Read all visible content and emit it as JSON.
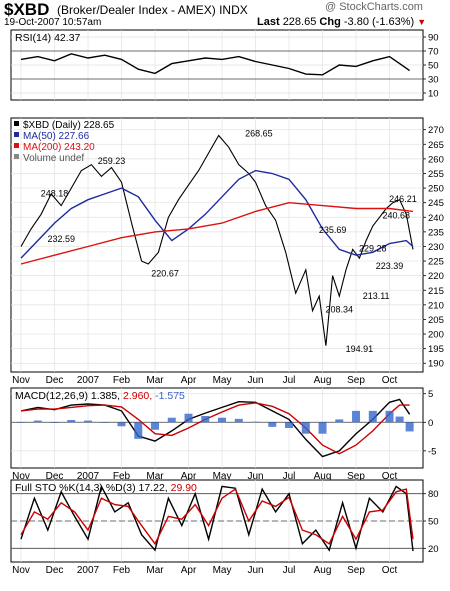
{
  "header": {
    "symbol": "$XBD",
    "name": "(Broker/Dealer Index - AMEX)",
    "exchange": "INDX",
    "watermark": "@ StockCharts.com",
    "date": "19-Oct-2007 10:57am",
    "last_label": "Last",
    "last_value": "228.65",
    "chg_label": "Chg",
    "chg_value": "-3.80 (-1.63%)",
    "chg_arrow": "▼"
  },
  "chart_data": [
    {
      "type": "line",
      "title": "RSI(14) 42.37",
      "indicator": "RSI",
      "yticks": [
        10,
        30,
        50,
        70,
        90
      ],
      "ylim": [
        0,
        100
      ],
      "reference_lines": [
        30,
        70
      ],
      "months": [
        "Nov",
        "Dec",
        "2007",
        "Feb",
        "Mar",
        "Apr",
        "May",
        "Jun",
        "Jul",
        "Aug",
        "Sep",
        "Oct"
      ],
      "series": [
        {
          "name": "RSI(14)",
          "color": "#000000",
          "x": [
            0,
            0.5,
            1,
            1.5,
            2,
            2.5,
            3,
            3.5,
            4,
            4.5,
            5,
            5.5,
            6,
            6.5,
            7,
            7.5,
            8,
            8.5,
            9,
            9.5,
            10,
            10.5,
            11,
            11.3,
            11.6
          ],
          "values": [
            58,
            62,
            56,
            66,
            60,
            64,
            58,
            44,
            38,
            52,
            56,
            60,
            58,
            62,
            55,
            50,
            45,
            37,
            36,
            50,
            48,
            56,
            62,
            52,
            42
          ]
        }
      ]
    },
    {
      "type": "line",
      "title": "$XBD (Daily) 228.65",
      "yticks": [
        190,
        195,
        200,
        205,
        210,
        215,
        220,
        225,
        230,
        235,
        240,
        245,
        250,
        255,
        260,
        265,
        270
      ],
      "ylim": [
        187,
        274
      ],
      "months": [
        "Nov",
        "Dec",
        "2007",
        "Feb",
        "Mar",
        "Apr",
        "May",
        "Jun",
        "Jul",
        "Aug",
        "Sep",
        "Oct"
      ],
      "series": [
        {
          "name": "$XBD (Daily) 228.65",
          "color": "#000000",
          "x": [
            0,
            0.3,
            0.6,
            0.9,
            1.2,
            1.5,
            1.8,
            2.1,
            2.4,
            2.7,
            3,
            3.3,
            3.6,
            3.8,
            4.1,
            4.4,
            4.7,
            5,
            5.3,
            5.6,
            5.9,
            6.2,
            6.5,
            6.8,
            7,
            7.3,
            7.6,
            7.9,
            8.2,
            8.5,
            8.7,
            8.9,
            9.1,
            9.3,
            9.5,
            9.7,
            9.9,
            10.1,
            10.3,
            10.5,
            10.7,
            10.9,
            11.1,
            11.3,
            11.5,
            11.7
          ],
          "values": [
            230,
            236,
            241,
            248,
            244,
            250,
            256,
            258,
            254,
            257,
            252,
            238,
            225,
            224,
            228,
            240,
            246,
            251,
            256,
            262,
            268,
            264,
            258,
            255,
            252,
            244,
            239,
            228,
            214,
            222,
            208,
            213,
            196,
            220,
            213,
            222,
            229,
            226,
            232,
            237,
            240,
            243,
            245,
            246,
            241,
            229
          ]
        },
        {
          "name": "MA(50) 227.66",
          "color": "#1f2a9f",
          "x": [
            0,
            0.5,
            1,
            1.5,
            2,
            2.5,
            3,
            3.5,
            4,
            4.5,
            5,
            5.5,
            6,
            6.5,
            7,
            7.5,
            8,
            8.5,
            9,
            9.5,
            10,
            10.5,
            11,
            11.5,
            11.7
          ],
          "values": [
            226,
            232,
            238,
            243,
            246,
            248,
            250,
            247,
            239,
            232,
            236,
            241,
            247,
            253,
            256,
            255,
            253,
            246,
            236,
            229,
            227,
            228,
            231,
            232,
            230
          ]
        },
        {
          "name": "MA(200) 243.20",
          "color": "#dd1111",
          "x": [
            0,
            1,
            2,
            3,
            4,
            5,
            6,
            7,
            8,
            9,
            10,
            11,
            11.7
          ],
          "values": [
            224,
            227,
            230,
            233,
            235,
            236,
            238,
            242,
            245,
            244,
            243,
            243,
            242
          ]
        },
        {
          "name": "Volume undef",
          "color": "#888888",
          "x": [],
          "values": []
        }
      ],
      "annotations": [
        {
          "label": "248.18",
          "x": 1,
          "value": 248.18
        },
        {
          "label": "232.59",
          "x": 1.2,
          "value": 232.59
        },
        {
          "label": "259.23",
          "x": 2.7,
          "value": 259.23
        },
        {
          "label": "220.67",
          "x": 4.3,
          "value": 220.67
        },
        {
          "label": "268.65",
          "x": 7.1,
          "value": 268.65
        },
        {
          "label": "235.69",
          "x": 9.3,
          "value": 235.69
        },
        {
          "label": "208.34",
          "x": 9.5,
          "value": 208.34
        },
        {
          "label": "194.91",
          "x": 10.1,
          "value": 194.91
        },
        {
          "label": "229.28",
          "x": 10.5,
          "value": 229.28
        },
        {
          "label": "213.11",
          "x": 10.6,
          "value": 213.11
        },
        {
          "label": "223.39",
          "x": 11,
          "value": 223.39
        },
        {
          "label": "240.68",
          "x": 11.2,
          "value": 240.68
        },
        {
          "label": "246.21",
          "x": 11.4,
          "value": 246.21
        }
      ]
    },
    {
      "type": "line",
      "title": "MACD(12,26,9) 1.385, 2.960, -1.575",
      "indicator": "MACD",
      "legend": [
        {
          "text": "MACD(12,26,9) 1.385,",
          "color": "#000000"
        },
        {
          "text": "2.960,",
          "color": "#cc0000"
        },
        {
          "text": "-1.575",
          "color": "#3366cc"
        }
      ],
      "yticks": [
        -5,
        0,
        5
      ],
      "ylim": [
        -8,
        6
      ],
      "months": [
        "Nov",
        "Dec",
        "2007",
        "Feb",
        "Mar",
        "Apr",
        "May",
        "Jun",
        "Jul",
        "Aug",
        "Sep",
        "Oct"
      ],
      "series": [
        {
          "name": "MACD",
          "color": "#000000",
          "x": [
            0,
            0.5,
            1,
            1.5,
            2,
            2.5,
            3,
            3.5,
            4,
            4.5,
            5,
            5.5,
            6,
            6.5,
            7,
            7.5,
            8,
            8.5,
            9,
            9.5,
            10,
            10.5,
            11,
            11.3,
            11.6
          ],
          "values": [
            2,
            2.6,
            2.2,
            3,
            3.2,
            3,
            2,
            -2.4,
            -3.3,
            -1.5,
            0.5,
            1.6,
            2.6,
            3.6,
            3.5,
            2,
            0.5,
            -3,
            -6,
            -5,
            -2,
            0.5,
            3.5,
            4,
            1.4
          ]
        },
        {
          "name": "Signal",
          "color": "#cc0000",
          "x": [
            0,
            0.5,
            1,
            1.5,
            2,
            2.5,
            3,
            3.5,
            4,
            4.5,
            5,
            5.5,
            6,
            6.5,
            7,
            7.5,
            8,
            8.5,
            9,
            9.5,
            10,
            10.5,
            11,
            11.3,
            11.6
          ],
          "values": [
            2,
            2.3,
            2.3,
            2.6,
            2.9,
            3,
            2.7,
            0.5,
            -2,
            -2.3,
            -1,
            0.5,
            1.8,
            3,
            3.4,
            2.8,
            1.5,
            -1,
            -4,
            -5.5,
            -4,
            -1.5,
            1.5,
            3,
            3
          ]
        },
        {
          "name": "Histogram",
          "color": "#3366cc",
          "type": "bar",
          "x": [
            0,
            0.5,
            1,
            1.5,
            2,
            2.5,
            3,
            3.5,
            4,
            4.5,
            5,
            5.5,
            6,
            6.5,
            7,
            7.5,
            8,
            8.5,
            9,
            9.5,
            10,
            10.5,
            11,
            11.3,
            11.6
          ],
          "values": [
            0,
            0.3,
            -0.1,
            0.4,
            0.3,
            0,
            -0.7,
            -2.9,
            -1.3,
            0.8,
            1.5,
            1.1,
            0.8,
            0.6,
            0.1,
            -0.8,
            -1,
            -2,
            -2,
            0.5,
            2,
            2,
            2,
            1,
            -1.6
          ]
        }
      ]
    },
    {
      "type": "line",
      "title": "Full STO %K(14,3) %D(3) 17.22, 29.90",
      "indicator": "Full Stochastic",
      "legend": [
        {
          "text": "Full STO %K(14,3) %D(3) 17.22,",
          "color": "#000000"
        },
        {
          "text": "29.90",
          "color": "#cc0000"
        }
      ],
      "yticks": [
        20,
        50,
        80
      ],
      "ylim": [
        5,
        95
      ],
      "reference_lines": [
        20,
        50,
        80
      ],
      "months": [
        "Nov",
        "Dec",
        "2007",
        "Feb",
        "Mar",
        "Apr",
        "May",
        "Jun",
        "Jul",
        "Aug",
        "Sep",
        "Oct"
      ],
      "series": [
        {
          "name": "%K",
          "color": "#000000",
          "x": [
            0,
            0.4,
            0.8,
            1.2,
            1.6,
            2,
            2.4,
            2.8,
            3.2,
            3.6,
            4,
            4.4,
            4.8,
            5.2,
            5.6,
            6,
            6.4,
            6.8,
            7.2,
            7.6,
            8,
            8.4,
            8.8,
            9.2,
            9.6,
            10,
            10.4,
            10.8,
            11.2,
            11.5,
            11.7
          ],
          "values": [
            30,
            75,
            40,
            82,
            55,
            30,
            88,
            60,
            70,
            35,
            18,
            75,
            45,
            80,
            30,
            88,
            86,
            35,
            85,
            60,
            80,
            25,
            40,
            18,
            70,
            20,
            75,
            60,
            88,
            80,
            17
          ]
        },
        {
          "name": "%D",
          "color": "#cc0000",
          "x": [
            0,
            0.4,
            0.8,
            1.2,
            1.6,
            2,
            2.4,
            2.8,
            3.2,
            3.6,
            4,
            4.4,
            4.8,
            5.2,
            5.6,
            6,
            6.4,
            6.8,
            7.2,
            7.6,
            8,
            8.4,
            8.8,
            9.2,
            9.6,
            10,
            10.4,
            10.8,
            11.2,
            11.5,
            11.7
          ],
          "values": [
            35,
            60,
            52,
            70,
            60,
            40,
            75,
            68,
            66,
            45,
            25,
            55,
            52,
            68,
            45,
            75,
            85,
            50,
            72,
            66,
            76,
            40,
            35,
            25,
            55,
            30,
            60,
            62,
            82,
            85,
            30
          ]
        }
      ]
    }
  ]
}
